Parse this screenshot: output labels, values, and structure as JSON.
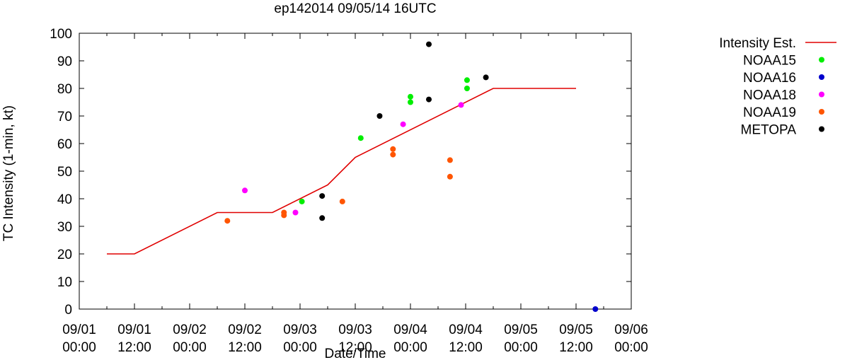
{
  "chart_data": {
    "type": "scatter",
    "title": "ep142014 09/05/14 16UTC",
    "xlabel": "Date/Time",
    "ylabel": "TC Intensity (1-min, kt)",
    "xlim": [
      0,
      120
    ],
    "ylim": [
      0,
      100
    ],
    "x_unit": "hours since 09/01 00:00",
    "yticks": [
      0,
      10,
      20,
      30,
      40,
      50,
      60,
      70,
      80,
      90,
      100
    ],
    "xticks": [
      {
        "x": 0,
        "date": "09/01",
        "time": "00:00"
      },
      {
        "x": 12,
        "date": "09/01",
        "time": "12:00"
      },
      {
        "x": 24,
        "date": "09/02",
        "time": "00:00"
      },
      {
        "x": 36,
        "date": "09/02",
        "time": "12:00"
      },
      {
        "x": 48,
        "date": "09/03",
        "time": "00:00"
      },
      {
        "x": 60,
        "date": "09/03",
        "time": "12:00"
      },
      {
        "x": 72,
        "date": "09/04",
        "time": "00:00"
      },
      {
        "x": 84,
        "date": "09/04",
        "time": "12:00"
      },
      {
        "x": 96,
        "date": "09/05",
        "time": "00:00"
      },
      {
        "x": 108,
        "date": "09/05",
        "time": "12:00"
      },
      {
        "x": 120,
        "date": "09/06",
        "time": "00:00"
      }
    ],
    "line_series": {
      "name": "Intensity Est.",
      "color": "#e00000",
      "points": [
        [
          6,
          20
        ],
        [
          12,
          20
        ],
        [
          30,
          35
        ],
        [
          42,
          35
        ],
        [
          54,
          45
        ],
        [
          60,
          55
        ],
        [
          90,
          80
        ],
        [
          108,
          80
        ]
      ]
    },
    "series": [
      {
        "name": "NOAA15",
        "color": "#00ee00",
        "points": [
          [
            48.4,
            39
          ],
          [
            61.2,
            62
          ],
          [
            72.0,
            77
          ],
          [
            72.0,
            75
          ],
          [
            84.3,
            83
          ],
          [
            84.3,
            80
          ]
        ]
      },
      {
        "name": "NOAA16",
        "color": "#0000cc",
        "points": [
          [
            112.2,
            0
          ]
        ]
      },
      {
        "name": "NOAA18",
        "color": "#ff00ff",
        "points": [
          [
            36.0,
            43
          ],
          [
            47.0,
            35
          ],
          [
            70.4,
            67
          ],
          [
            83.0,
            74
          ]
        ]
      },
      {
        "name": "NOAA19",
        "color": "#ff5500",
        "points": [
          [
            32.2,
            32
          ],
          [
            44.5,
            35
          ],
          [
            44.5,
            34
          ],
          [
            57.2,
            39
          ],
          [
            68.2,
            58
          ],
          [
            68.2,
            56
          ],
          [
            80.6,
            54
          ],
          [
            80.6,
            48
          ]
        ]
      },
      {
        "name": "METOPA",
        "color": "#000000",
        "points": [
          [
            52.8,
            41
          ],
          [
            52.8,
            33
          ],
          [
            65.3,
            70
          ],
          [
            76.0,
            96
          ],
          [
            76.0,
            76
          ],
          [
            88.4,
            84
          ]
        ]
      }
    ],
    "legend_position": "top-right outside plot"
  }
}
